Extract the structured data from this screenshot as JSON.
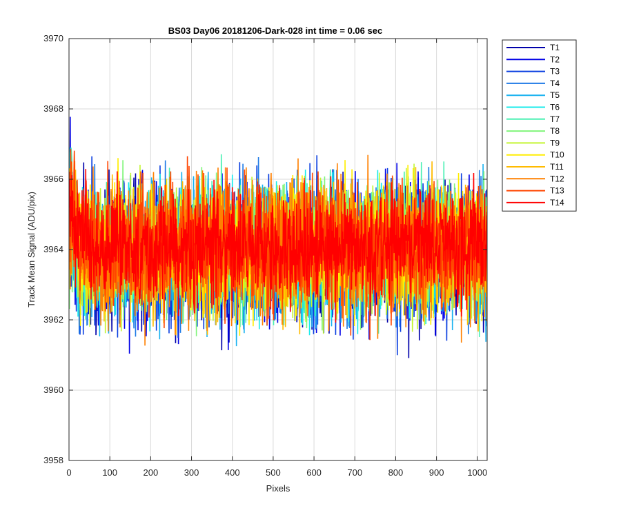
{
  "chart_data": {
    "type": "line",
    "title": "BS03 Day06 20181206-Dark-028 int time = 0.06 sec",
    "xlabel": "Pixels",
    "ylabel": "Track Mean Signal (ADU/pix)",
    "xlim": [
      0,
      1024
    ],
    "ylim": [
      3958,
      3970
    ],
    "xticks": [
      0,
      100,
      200,
      300,
      400,
      500,
      600,
      700,
      800,
      900,
      1000
    ],
    "yticks": [
      3958,
      3960,
      3962,
      3964,
      3966,
      3968,
      3970
    ],
    "grid": true,
    "legend_position": "outside-top-right",
    "points_per_series": 1024,
    "noise_amplitude": 1.1,
    "series": [
      {
        "name": "T1",
        "color": "#0000aa",
        "mean": 3963.8,
        "amplitude": 1.2
      },
      {
        "name": "T2",
        "color": "#0000e6",
        "mean": 3963.9,
        "amplitude": 1.2
      },
      {
        "name": "T3",
        "color": "#0a3fe0",
        "mean": 3963.8,
        "amplitude": 1.2
      },
      {
        "name": "T4",
        "color": "#1e7ae6",
        "mean": 3963.9,
        "amplitude": 1.2
      },
      {
        "name": "T5",
        "color": "#19b2f0",
        "mean": 3963.9,
        "amplitude": 1.2
      },
      {
        "name": "T6",
        "color": "#19ebeb",
        "mean": 3963.9,
        "amplitude": 1.1
      },
      {
        "name": "T7",
        "color": "#4bf0b4",
        "mean": 3964.0,
        "amplitude": 1.1
      },
      {
        "name": "T8",
        "color": "#80f57a",
        "mean": 3964.0,
        "amplitude": 1.1
      },
      {
        "name": "T9",
        "color": "#c3f532",
        "mean": 3964.0,
        "amplitude": 1.1
      },
      {
        "name": "T10",
        "color": "#ffee00",
        "mean": 3964.0,
        "amplitude": 1.1
      },
      {
        "name": "T11",
        "color": "#ffbb00",
        "mean": 3964.0,
        "amplitude": 1.1
      },
      {
        "name": "T12",
        "color": "#ff8000",
        "mean": 3964.0,
        "amplitude": 1.1
      },
      {
        "name": "T13",
        "color": "#ff4500",
        "mean": 3964.1,
        "amplitude": 1.1
      },
      {
        "name": "T14",
        "color": "#ff0000",
        "mean": 3964.1,
        "amplitude": 1.0
      }
    ]
  }
}
